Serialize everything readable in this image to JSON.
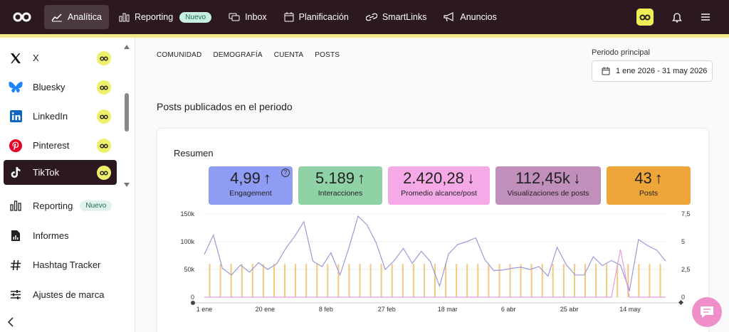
{
  "topbar": {
    "nav": [
      {
        "label": "Analítica",
        "icon": "trend-icon",
        "active": true
      },
      {
        "label": "Reporting",
        "icon": "bars-icon",
        "badge": "Nuevo"
      },
      {
        "label": "Inbox",
        "icon": "chat-icon"
      },
      {
        "label": "Planificación",
        "icon": "calendar-icon"
      },
      {
        "label": "SmartLinks",
        "icon": "link-icon"
      },
      {
        "label": "Anuncios",
        "icon": "megaphone-icon"
      }
    ]
  },
  "sidebar": {
    "networks": [
      {
        "label": "X",
        "icon": "x-logo-icon"
      },
      {
        "label": "Bluesky",
        "icon": "bluesky-icon"
      },
      {
        "label": "LinkedIn",
        "icon": "linkedin-icon"
      },
      {
        "label": "Pinterest",
        "icon": "pinterest-icon"
      },
      {
        "label": "TikTok",
        "icon": "tiktok-icon",
        "selected": true
      }
    ],
    "menu": [
      {
        "label": "Reporting",
        "badge": "Nuevo",
        "icon": "bars-icon"
      },
      {
        "label": "Informes",
        "icon": "report-icon"
      },
      {
        "label": "Hashtag Tracker",
        "icon": "hashtag-icon"
      },
      {
        "label": "Ajustes de marca",
        "icon": "sliders-icon"
      }
    ]
  },
  "main": {
    "subtabs": [
      "COMUNIDAD",
      "DEMOGRAFÍA",
      "CUENTA",
      "POSTS"
    ],
    "period_label": "Periodo principal",
    "period_value": "1 ene 2026 - 31 may 2026",
    "section_title": "Posts publicados en el periodo",
    "card_title": "Resumen",
    "metrics": [
      {
        "value": "4,99",
        "arrow": "↑",
        "label": "Engagement",
        "color": "#8f9cf3",
        "help": "?"
      },
      {
        "value": "5.189",
        "arrow": "↑",
        "label": "Interacciones",
        "color": "#8fd2a6"
      },
      {
        "value": "2.420,28",
        "arrow": "↓",
        "label": "Promedio alcance/post",
        "color": "#f5a9e6"
      },
      {
        "value": "112,45k",
        "arrow": "↓",
        "label": "Visualizaciones de posts",
        "color": "#c18fbc"
      },
      {
        "value": "43",
        "arrow": "↑",
        "label": "Posts",
        "color": "#eea63a"
      }
    ]
  },
  "chart_data": {
    "type": "line",
    "x_ticks": [
      "1 ene",
      "20 ene",
      "8 feb",
      "27 feb",
      "18 mar",
      "6 abr",
      "25 abr",
      "14 may"
    ],
    "y_left_ticks": [
      "150k",
      "100k",
      "50k",
      "0"
    ],
    "y_right_ticks": [
      "7,5",
      "5",
      "2,5",
      "0"
    ],
    "ylim_left": [
      0,
      150000
    ],
    "ylim_right": [
      0,
      7.5
    ],
    "grid": true,
    "series": [
      {
        "color": "#9a9ad8",
        "axis": "left",
        "values": [
          77000,
          112000,
          52000,
          40000,
          58000,
          45000,
          62000,
          50000,
          60000,
          88000,
          110000,
          136000,
          65000,
          55000,
          80000,
          40000,
          90000,
          146000,
          130000,
          98000,
          50000,
          66000,
          88000,
          61000,
          83000,
          64000,
          20000,
          78000,
          95000,
          100000,
          107000,
          68000,
          48000,
          49000,
          52000,
          54000,
          50000,
          55000,
          38000,
          90000,
          59000,
          40000,
          40000,
          73000,
          57000,
          66000,
          58000,
          12000,
          104000,
          93000,
          85000,
          65000
        ]
      },
      {
        "color": "#e99ae0",
        "axis": "left",
        "values": [
          0,
          0,
          0,
          0,
          0,
          0,
          0,
          0,
          0,
          0,
          0,
          0,
          0,
          0,
          0,
          0,
          0,
          0,
          0,
          0,
          0,
          0,
          0,
          0,
          0,
          0,
          0,
          0,
          0,
          0,
          0,
          0,
          0,
          0,
          0,
          0,
          0,
          0,
          0,
          0,
          0,
          0,
          0,
          0,
          0,
          0,
          86000,
          0,
          0,
          0,
          0,
          0
        ]
      },
      {
        "color": "#f3c97c",
        "axis": "right",
        "type": "bar",
        "values": [
          3,
          3,
          3,
          3,
          3,
          3,
          3,
          3,
          3,
          3,
          3,
          3,
          3,
          3,
          3,
          3,
          3,
          3,
          3,
          3,
          3,
          3,
          3,
          3,
          3,
          3,
          3,
          3,
          3,
          3,
          3,
          3,
          3,
          3,
          3,
          3,
          3,
          3,
          3,
          3,
          3,
          3,
          3
        ]
      }
    ]
  }
}
